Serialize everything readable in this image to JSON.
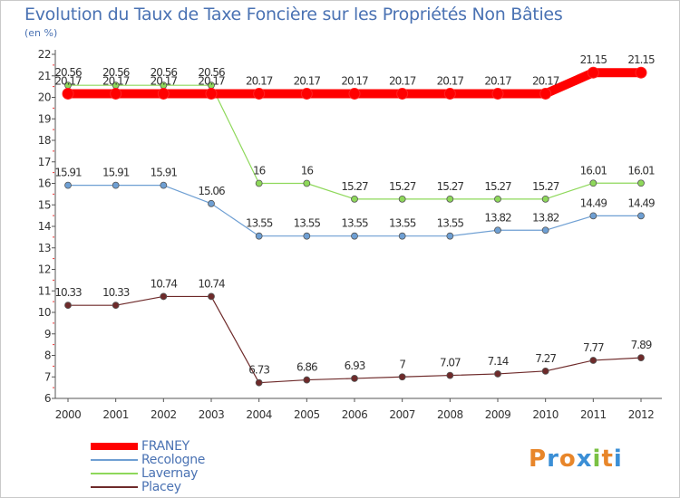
{
  "header": {
    "title": "Evolution du Taux de Taxe Foncière sur les Propriétés Non Bâties",
    "unit": "(en %)"
  },
  "brand": {
    "letters": [
      "P",
      "r",
      "o",
      "x",
      "i",
      "t",
      "i"
    ],
    "colors": [
      "#e8862a",
      "#3b8fd6",
      "#e8862a",
      "#3b8fd6",
      "#7ac143",
      "#e8862a",
      "#3b8fd6"
    ]
  },
  "chart_data": {
    "type": "line",
    "title": "Evolution du Taux de Taxe Foncière sur les Propriétés Non Bâties",
    "ylabel": "(en %)",
    "xlabel": "",
    "categories": [
      "2000",
      "2001",
      "2002",
      "2003",
      "2004",
      "2005",
      "2006",
      "2007",
      "2008",
      "2009",
      "2010",
      "2011",
      "2012"
    ],
    "ylim": [
      6,
      22
    ],
    "yticks": [
      6,
      7,
      8,
      9,
      10,
      11,
      12,
      13,
      14,
      15,
      16,
      17,
      18,
      19,
      20,
      21,
      22
    ],
    "grid": false,
    "legend_position": "bottom-left",
    "series": [
      {
        "name": "FRANEY",
        "color": "#ff0000",
        "emphasis": true,
        "values": [
          20.17,
          20.17,
          20.17,
          20.17,
          20.17,
          20.17,
          20.17,
          20.17,
          20.17,
          20.17,
          20.17,
          21.15,
          21.15
        ],
        "labels": [
          "20.17",
          "20.17",
          "20.17",
          "20.17",
          "20.17",
          "20.17",
          "20.17",
          "20.17",
          "20.17",
          "20.17",
          "20.17",
          "21.15",
          "21.15"
        ]
      },
      {
        "name": "Recologne",
        "color": "#6e9fd3",
        "values": [
          15.91,
          15.91,
          15.91,
          15.06,
          13.55,
          13.55,
          13.55,
          13.55,
          13.55,
          13.82,
          13.82,
          14.49,
          14.49
        ],
        "labels": [
          "15.91",
          "15.91",
          "15.91",
          "15.06",
          "13.55",
          "13.55",
          "13.55",
          "13.55",
          "13.55",
          "13.82",
          "13.82",
          "14.49",
          "14.49"
        ]
      },
      {
        "name": "Lavernay",
        "color": "#8ed85a",
        "values": [
          20.56,
          20.56,
          20.56,
          20.56,
          16,
          16,
          15.27,
          15.27,
          15.27,
          15.27,
          15.27,
          16.01,
          16.01
        ],
        "labels": [
          "20.56",
          "20.56",
          "20.56",
          "20.56",
          "16",
          "16",
          "15.27",
          "15.27",
          "15.27",
          "15.27",
          "15.27",
          "16.01",
          "16.01"
        ]
      },
      {
        "name": "Placey",
        "color": "#6e2a2a",
        "values": [
          10.33,
          10.33,
          10.74,
          10.74,
          6.73,
          6.86,
          6.93,
          7,
          7.07,
          7.14,
          7.27,
          7.77,
          7.89
        ],
        "labels": [
          "10.33",
          "10.33",
          "10.74",
          "10.74",
          "6.73",
          "6.86",
          "6.93",
          "7",
          "7.07",
          "7.14",
          "7.27",
          "7.77",
          "7.89"
        ]
      }
    ]
  }
}
